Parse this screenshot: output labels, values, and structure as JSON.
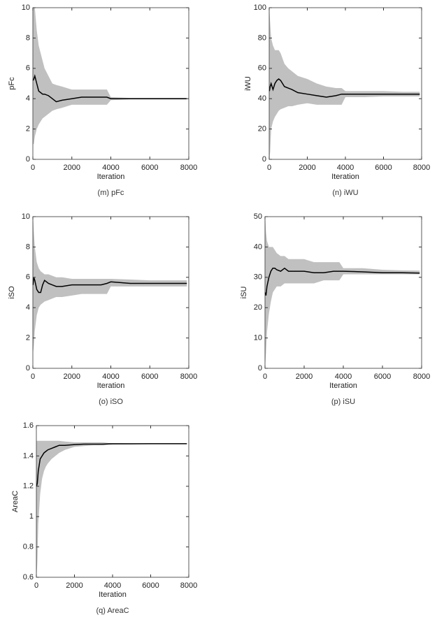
{
  "chart_data": [
    {
      "type": "line",
      "caption": "(m) pFc",
      "ylabel": "pFc",
      "xlabel": "Iteration",
      "xlim": [
        0,
        8000
      ],
      "xticks": [
        0,
        2000,
        4000,
        6000,
        8000
      ],
      "ylim": [
        0,
        10
      ],
      "yticks": [
        0,
        2,
        4,
        6,
        8,
        10
      ],
      "x": [
        10,
        50,
        100,
        200,
        300,
        400,
        500,
        600,
        800,
        1000,
        1200,
        1500,
        2000,
        2500,
        3000,
        3500,
        3800,
        4000,
        5000,
        6000,
        7000,
        7900
      ],
      "band": {
        "color": "#c0c0c0",
        "upper": [
          10,
          10,
          10,
          8.5,
          7.5,
          7,
          6.5,
          6,
          5.5,
          5,
          4.9,
          4.8,
          4.6,
          4.6,
          4.6,
          4.6,
          4.6,
          4.1,
          4.05,
          4.05,
          4.05,
          4.05
        ],
        "lower": [
          1,
          1,
          1.5,
          2,
          2.3,
          2.5,
          2.7,
          2.8,
          3,
          3.2,
          3.3,
          3.4,
          3.6,
          3.6,
          3.6,
          3.6,
          3.6,
          3.9,
          3.95,
          3.95,
          3.95,
          3.95
        ]
      },
      "series": [
        {
          "color": "#000000",
          "values": [
            5.2,
            5.3,
            5.5,
            5.0,
            4.5,
            4.4,
            4.3,
            4.3,
            4.2,
            4.0,
            3.8,
            3.9,
            4.0,
            4.1,
            4.1,
            4.1,
            4.1,
            4.0,
            4.0,
            4.0,
            4.0,
            4.0
          ]
        }
      ]
    },
    {
      "type": "line",
      "caption": "(n) iWU",
      "ylabel": "iWU",
      "xlabel": "Iteration",
      "xlim": [
        0,
        8000
      ],
      "xticks": [
        0,
        2000,
        4000,
        6000,
        8000
      ],
      "ylim": [
        0,
        100
      ],
      "yticks": [
        0,
        20,
        40,
        60,
        80,
        100
      ],
      "x": [
        10,
        50,
        100,
        200,
        300,
        400,
        500,
        600,
        800,
        1000,
        1200,
        1500,
        2000,
        2500,
        3000,
        3500,
        3800,
        4000,
        5000,
        6000,
        7000,
        7900
      ],
      "band": {
        "color": "#c0c0c0",
        "upper": [
          100,
          90,
          80,
          75,
          72,
          72,
          72,
          70,
          63,
          60,
          58,
          55,
          53,
          50,
          48,
          47,
          47,
          45,
          45,
          45,
          44.5,
          44.5
        ],
        "lower": [
          0,
          5,
          20,
          25,
          28,
          30,
          32,
          33,
          34,
          35,
          35,
          36,
          37,
          36,
          36,
          36,
          36,
          41,
          41,
          41.5,
          41.5,
          41.5
        ]
      },
      "series": [
        {
          "color": "#000000",
          "values": [
            45,
            48,
            50,
            46,
            50,
            52,
            53,
            52,
            48,
            47,
            46,
            44,
            43,
            42,
            41,
            42,
            43,
            43,
            43,
            43,
            43,
            43
          ]
        }
      ]
    },
    {
      "type": "line",
      "caption": "(o) iSO",
      "ylabel": "iSO",
      "xlabel": "Iteration",
      "xlim": [
        0,
        8000
      ],
      "xticks": [
        0,
        2000,
        4000,
        6000,
        8000
      ],
      "ylim": [
        0,
        10
      ],
      "yticks": [
        0,
        2,
        4,
        6,
        8,
        10
      ],
      "x": [
        10,
        50,
        100,
        200,
        300,
        400,
        500,
        600,
        800,
        1000,
        1200,
        1500,
        2000,
        2500,
        3000,
        3500,
        3800,
        4000,
        5000,
        6000,
        7000,
        7900
      ],
      "band": {
        "color": "#c0c0c0",
        "upper": [
          10,
          9,
          8,
          7,
          6.6,
          6.4,
          6.3,
          6.2,
          6.2,
          6.1,
          6,
          6,
          5.9,
          5.9,
          5.9,
          5.9,
          5.9,
          5.9,
          5.85,
          5.8,
          5.8,
          5.8
        ],
        "lower": [
          1,
          1.5,
          2.5,
          3.5,
          4,
          4.2,
          4.3,
          4.4,
          4.5,
          4.6,
          4.7,
          4.7,
          4.8,
          4.9,
          4.9,
          4.9,
          4.9,
          5.4,
          5.4,
          5.4,
          5.4,
          5.4
        ]
      },
      "series": [
        {
          "color": "#000000",
          "values": [
            5.5,
            6,
            5.8,
            5.2,
            5,
            5,
            5.5,
            5.8,
            5.6,
            5.5,
            5.4,
            5.4,
            5.5,
            5.5,
            5.5,
            5.5,
            5.6,
            5.7,
            5.6,
            5.6,
            5.6,
            5.6
          ]
        }
      ]
    },
    {
      "type": "line",
      "caption": "(p) iSU",
      "ylabel": "iSU",
      "xlabel": "Iteration",
      "xlim": [
        0,
        8000
      ],
      "xticks": [
        0,
        2000,
        4000,
        6000,
        8000
      ],
      "ylim": [
        0,
        50
      ],
      "yticks": [
        0,
        10,
        20,
        30,
        40,
        50
      ],
      "x": [
        10,
        50,
        100,
        200,
        300,
        400,
        500,
        600,
        800,
        1000,
        1200,
        1500,
        2000,
        2500,
        3000,
        3500,
        3800,
        4000,
        5000,
        6000,
        7000,
        7900
      ],
      "band": {
        "color": "#c0c0c0",
        "upper": [
          50,
          45,
          42,
          40,
          40,
          40,
          39,
          38,
          37,
          37,
          36,
          36,
          36,
          35,
          35,
          35,
          35,
          33,
          33,
          32.5,
          32.3,
          32.2
        ],
        "lower": [
          1,
          5,
          12,
          18,
          22,
          25,
          26,
          27,
          27,
          28,
          28,
          28,
          28,
          28,
          29,
          29,
          29,
          31,
          31,
          31,
          31,
          31
        ]
      },
      "series": [
        {
          "color": "#000000",
          "values": [
            25,
            24,
            27,
            30,
            32,
            33,
            33,
            32.5,
            32,
            33,
            32,
            32,
            32,
            31.5,
            31.5,
            32,
            32,
            32,
            31.8,
            31.5,
            31.5,
            31.4
          ]
        }
      ]
    },
    {
      "type": "line",
      "caption": "(q) AreaC",
      "ylabel": "AreaC",
      "xlabel": "Iteration",
      "xlim": [
        0,
        8000
      ],
      "xticks": [
        0,
        2000,
        4000,
        6000,
        8000
      ],
      "ylim": [
        0.6,
        1.6
      ],
      "yticks": [
        0.6,
        0.8,
        1,
        1.2,
        1.4,
        1.6
      ],
      "x": [
        10,
        50,
        100,
        200,
        300,
        400,
        500,
        600,
        800,
        1000,
        1200,
        1500,
        2000,
        2500,
        3000,
        3500,
        3800,
        4000,
        5000,
        6000,
        7000,
        7900
      ],
      "band": {
        "color": "#c0c0c0",
        "upper": [
          1.5,
          1.5,
          1.5,
          1.5,
          1.5,
          1.5,
          1.5,
          1.5,
          1.5,
          1.5,
          1.5,
          1.495,
          1.49,
          1.49,
          1.49,
          1.49,
          1.485,
          1.485,
          1.483,
          1.482,
          1.482,
          1.482
        ],
        "lower": [
          0.6,
          0.7,
          0.95,
          1.15,
          1.25,
          1.3,
          1.33,
          1.35,
          1.38,
          1.4,
          1.42,
          1.44,
          1.46,
          1.465,
          1.47,
          1.47,
          1.472,
          1.475,
          1.477,
          1.479,
          1.48,
          1.48
        ]
      },
      "series": [
        {
          "color": "#000000",
          "values": [
            1.2,
            1.22,
            1.3,
            1.38,
            1.4,
            1.42,
            1.43,
            1.44,
            1.45,
            1.46,
            1.47,
            1.47,
            1.475,
            1.478,
            1.478,
            1.478,
            1.48,
            1.48,
            1.48,
            1.481,
            1.481,
            1.481
          ]
        }
      ]
    }
  ]
}
